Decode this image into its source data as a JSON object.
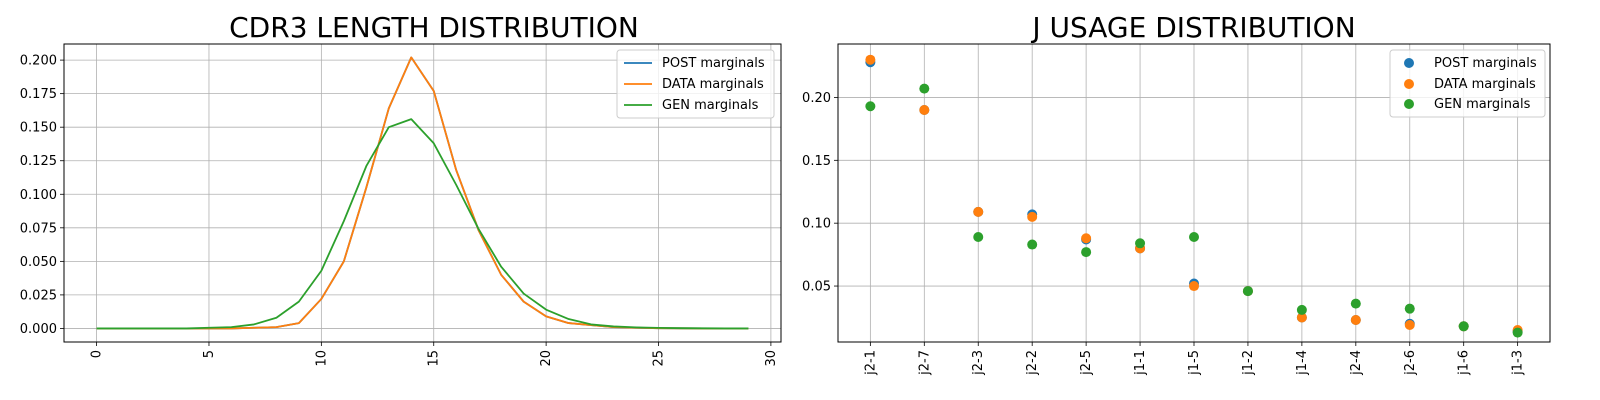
{
  "chart_data": [
    {
      "type": "line",
      "title": "CDR3 LENGTH DISTRIBUTION",
      "xlabel": "",
      "ylabel": "",
      "xlim": [
        -1.45,
        30.45
      ],
      "ylim": [
        -0.0101,
        0.212
      ],
      "xticks": [
        0,
        5,
        10,
        15,
        20,
        25,
        30
      ],
      "yticks": [
        0.0,
        0.025,
        0.05,
        0.075,
        0.1,
        0.125,
        0.15,
        0.175,
        0.2
      ],
      "ytick_labels": [
        "0.000",
        "0.025",
        "0.050",
        "0.075",
        "0.100",
        "0.125",
        "0.150",
        "0.175",
        "0.200"
      ],
      "grid": true,
      "legend_position": "top-right",
      "x": [
        0,
        1,
        2,
        3,
        4,
        5,
        6,
        7,
        8,
        9,
        10,
        11,
        12,
        13,
        14,
        15,
        16,
        17,
        18,
        19,
        20,
        21,
        22,
        23,
        24,
        25,
        26,
        27,
        28,
        29
      ],
      "series": [
        {
          "name": "POST marginals",
          "color": "#1f77b4",
          "values": [
            0,
            0,
            0,
            0,
            0,
            0,
            0,
            0.0005,
            0.001,
            0.004,
            0.022,
            0.05,
            0.105,
            0.164,
            0.202,
            0.177,
            0.118,
            0.073,
            0.04,
            0.02,
            0.009,
            0.004,
            0.0025,
            0.001,
            0.0005,
            0.0002,
            0.0001,
            0,
            0,
            0
          ]
        },
        {
          "name": "DATA marginals",
          "color": "#ff7f0e",
          "values": [
            0,
            0,
            0,
            0,
            0,
            0,
            0,
            0.0005,
            0.001,
            0.004,
            0.022,
            0.05,
            0.105,
            0.164,
            0.202,
            0.177,
            0.118,
            0.073,
            0.04,
            0.02,
            0.009,
            0.004,
            0.0025,
            0.001,
            0.0005,
            0.0002,
            0.0001,
            0,
            0,
            0
          ]
        },
        {
          "name": "GEN marginals",
          "color": "#2ca02c",
          "values": [
            0,
            0,
            0,
            0,
            0,
            0.0005,
            0.001,
            0.003,
            0.008,
            0.02,
            0.043,
            0.08,
            0.121,
            0.15,
            0.156,
            0.138,
            0.107,
            0.074,
            0.046,
            0.026,
            0.014,
            0.007,
            0.003,
            0.0015,
            0.0008,
            0.0004,
            0.0002,
            0.0001,
            0,
            0
          ]
        }
      ]
    },
    {
      "type": "scatter",
      "title": "J USAGE DISTRIBUTION",
      "xlabel": "",
      "ylabel": "",
      "ylim": [
        0.0055,
        0.2425
      ],
      "yticks": [
        0.05,
        0.1,
        0.15,
        0.2
      ],
      "ytick_labels": [
        "0.05",
        "0.10",
        "0.15",
        "0.20"
      ],
      "grid": true,
      "legend_position": "top-right",
      "categories": [
        "j2-1",
        "j2-7",
        "j2-3",
        "j2-2",
        "j2-5",
        "j1-1",
        "j1-5",
        "j1-2",
        "j1-4",
        "j2-4",
        "j2-6",
        "j1-6",
        "j1-3"
      ],
      "series": [
        {
          "name": "POST marginals",
          "color": "#1f77b4",
          "values": [
            0.228,
            0.19,
            0.109,
            0.107,
            0.087,
            0.08,
            0.052,
            0.046,
            0.025,
            0.023,
            0.02,
            0.018,
            0.014
          ]
        },
        {
          "name": "DATA marginals",
          "color": "#ff7f0e",
          "values": [
            0.23,
            0.19,
            0.109,
            0.105,
            0.088,
            0.08,
            0.05,
            0.046,
            0.025,
            0.023,
            0.019,
            0.018,
            0.015
          ]
        },
        {
          "name": "GEN marginals",
          "color": "#2ca02c",
          "values": [
            0.193,
            0.207,
            0.089,
            0.083,
            0.077,
            0.084,
            0.089,
            0.046,
            0.031,
            0.036,
            0.032,
            0.018,
            0.013
          ]
        }
      ]
    }
  ]
}
